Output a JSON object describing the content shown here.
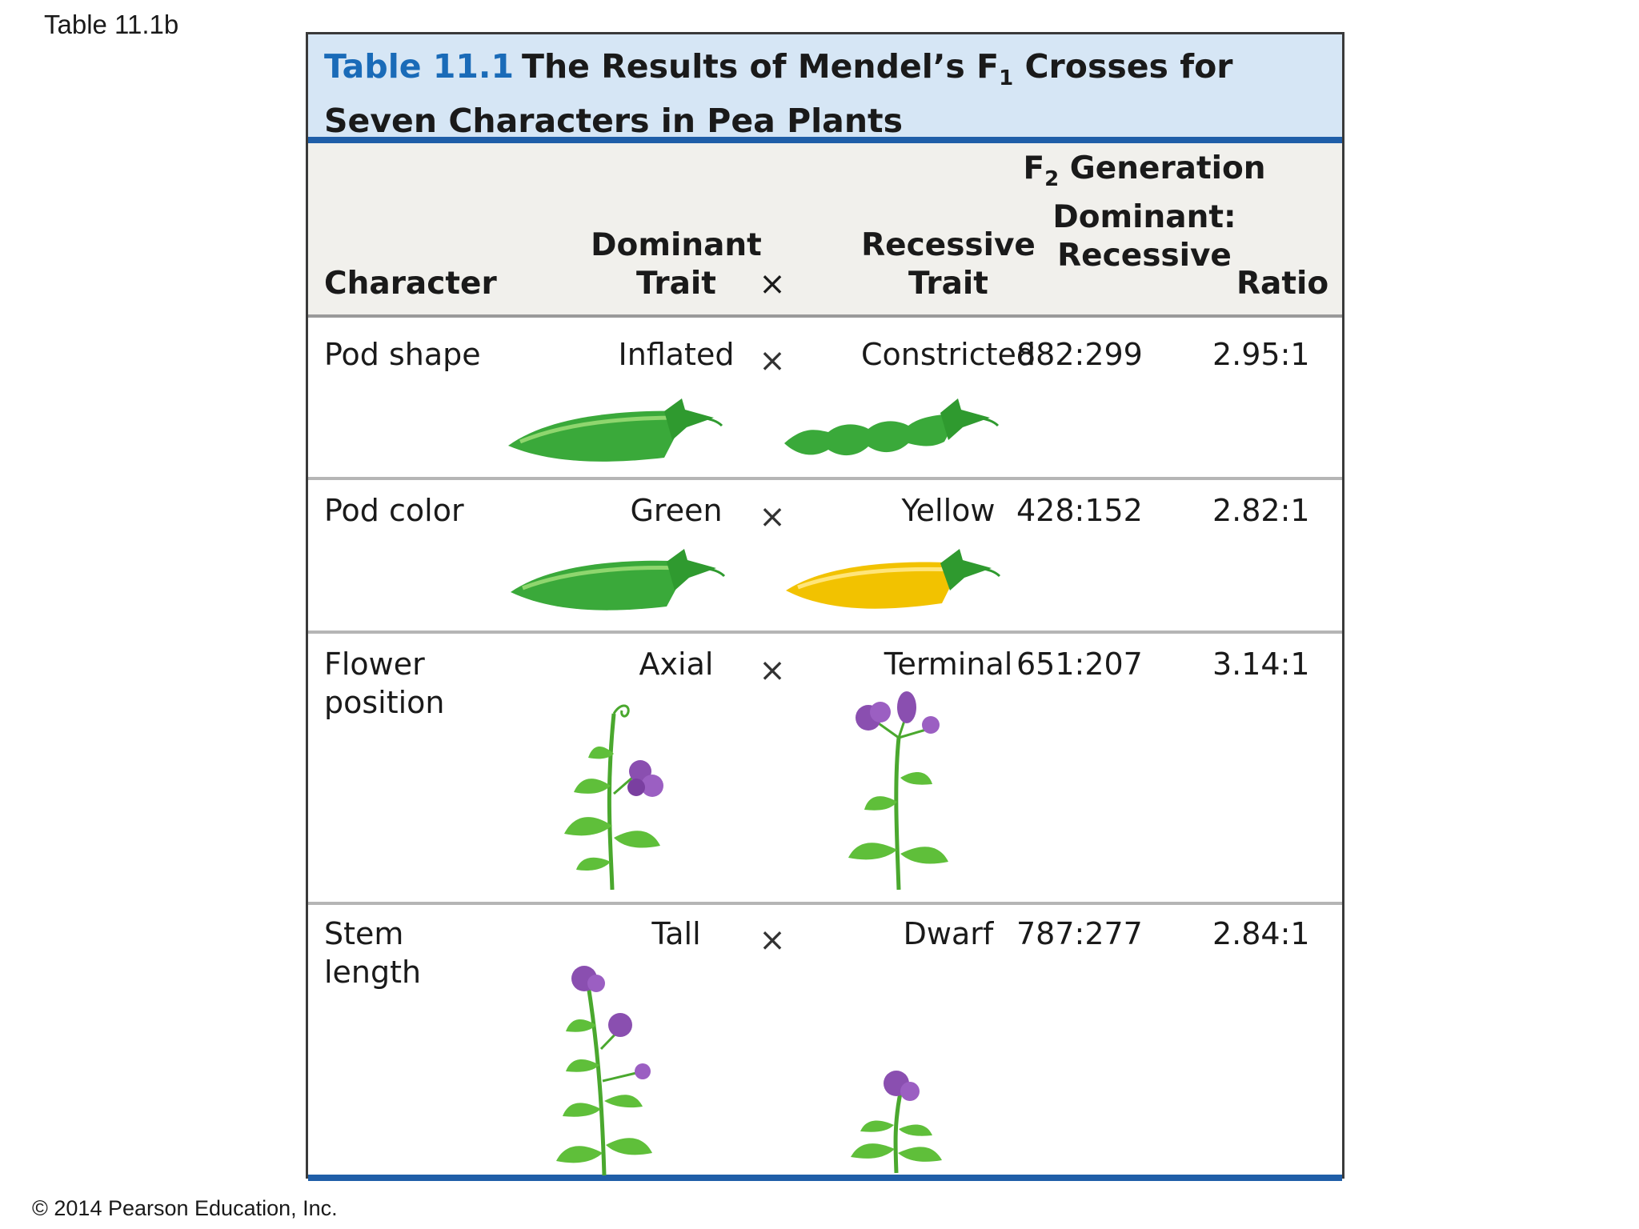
{
  "slide_label": "Table 11.1b",
  "copyright": "© 2014 Pearson Education, Inc.",
  "table": {
    "title_number": "Table 11.1",
    "title_line1_a": "The Results of Mendel’s F",
    "title_line1_sub": "1",
    "title_line1_b": " Crosses for",
    "title_line2": "Seven Characters in Pea Plants"
  },
  "headers": {
    "character": "Character",
    "dominant_l1": "Dominant",
    "dominant_l2": "Trait",
    "cross": "×",
    "recessive_l1": "Recessive",
    "recessive_l2": "Trait",
    "f2_l1a": "F",
    "f2_l1sub": "2",
    "f2_l1b": " Generation",
    "f2_l2": "Dominant:",
    "f2_l3": "Recessive",
    "ratio": "Ratio"
  },
  "rows": [
    {
      "character_l1": "Pod shape",
      "character_l2": "",
      "dominant": "Inflated",
      "cross": "×",
      "recessive": "Constricted",
      "f2": "882:299",
      "ratio": "2.95:1"
    },
    {
      "character_l1": "Pod color",
      "character_l2": "",
      "dominant": "Green",
      "cross": "×",
      "recessive": "Yellow",
      "f2": "428:152",
      "ratio": "2.82:1"
    },
    {
      "character_l1": "Flower",
      "character_l2": "position",
      "dominant": "Axial",
      "cross": "×",
      "recessive": "Terminal",
      "f2": "651:207",
      "ratio": "3.14:1"
    },
    {
      "character_l1": "Stem",
      "character_l2": "length",
      "dominant": "Tall",
      "cross": "×",
      "recessive": "Dwarf",
      "f2": "787:277",
      "ratio": "2.84:1"
    }
  ],
  "colors": {
    "title_band": "#d6e6f5",
    "accent_blue": "#1f5ea8",
    "pod_green": "#3aa93a",
    "pod_yellow": "#f2c200",
    "flower_purple": "#8a4fb0",
    "leaf_green": "#5fbf3a"
  }
}
